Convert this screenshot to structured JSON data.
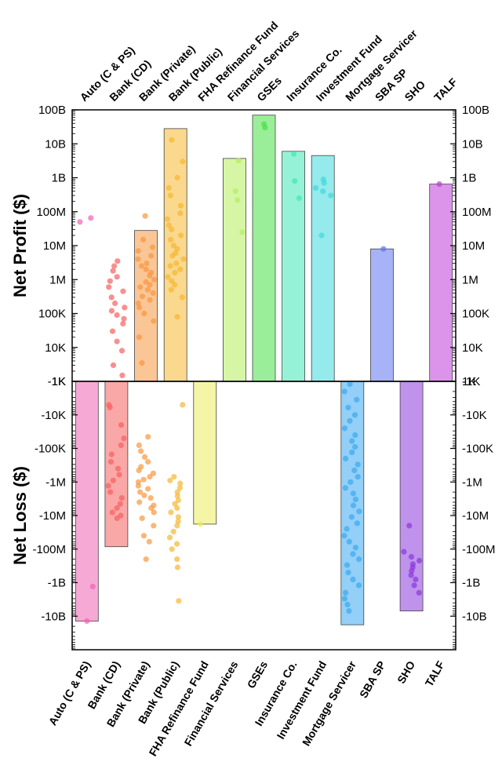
{
  "chart_data": {
    "type": "bar",
    "categories": [
      "Auto (C & PS)",
      "Bank (CD)",
      "Bank (Private)",
      "Bank (Public)",
      "FHA Refinance Fund",
      "Financial Services",
      "GSEs",
      "Insurance Co.",
      "Investment Fund",
      "Mortgage Servicer",
      "SBA SP",
      "SHO",
      "TALF"
    ],
    "colors": [
      "#f063b4",
      "#f65f5f",
      "#f8973f",
      "#f5b830",
      "#ecec60",
      "#b4ef5c",
      "#48e046",
      "#3fe8b4",
      "#3ed8dc",
      "#3aa8f0",
      "#5f73f0",
      "#8a38dc",
      "#c03ad8"
    ],
    "scale": "symlog",
    "panels": [
      {
        "ylabel": "Net Profit ($)",
        "ylim": [
          1000,
          100000000000
        ],
        "tick_values": [
          1000,
          10000,
          100000,
          1000000,
          10000000,
          100000000,
          1000000000,
          10000000000,
          100000000000
        ],
        "tick_labels": [
          "1K",
          "10K",
          "100K",
          "1M",
          "10M",
          "100M",
          "1B",
          "10B",
          "100B"
        ],
        "bar_values": [
          null,
          null,
          28000000,
          28000000000,
          null,
          3700000000,
          70000000000,
          6000000000,
          4500000000,
          null,
          8000000,
          null,
          650000000
        ],
        "points": [
          [
            65000000,
            50000000
          ],
          [
            3500000,
            2500000,
            1800000,
            1200000,
            900000,
            600000,
            450000,
            300000,
            200000,
            150000,
            120000,
            90000,
            70000,
            50000,
            30000,
            15000,
            8000,
            3000,
            1500
          ],
          [
            75000000,
            15000000,
            9000000,
            7000000,
            5000000,
            4000000,
            3000000,
            2500000,
            2000000,
            1600000,
            1300000,
            1000000,
            850000,
            700000,
            600000,
            500000,
            400000,
            320000,
            250000,
            200000,
            150000,
            100000,
            60000,
            20000,
            3500
          ],
          [
            13000000000,
            3000000000,
            1000000000,
            500000000,
            300000000,
            150000000,
            90000000,
            60000000,
            40000000,
            30000000,
            20000000,
            15000000,
            10000000,
            8000000,
            6000000,
            5000000,
            4000000,
            3000000,
            2500000,
            2000000,
            1600000,
            1200000,
            900000,
            700000,
            500000,
            300000,
            80000
          ],
          [],
          [
            3200000000,
            400000000,
            220000000,
            25000000
          ],
          [
            38000000000,
            30000000000
          ],
          [
            5000000000,
            800000000,
            250000000
          ],
          [
            900000000,
            700000000,
            500000000,
            400000000,
            300000000,
            20000000
          ],
          [],
          [
            8000000
          ],
          [],
          [
            650000000
          ]
        ]
      },
      {
        "ylabel": "Net Loss ($)",
        "ylim": [
          -1000,
          -100000000000
        ],
        "tick_values": [
          -1000,
          -10000,
          -100000,
          -1000000,
          -10000000,
          -100000000,
          -1000000000,
          -10000000000
        ],
        "tick_labels": [
          "-1K",
          "-10K",
          "-100K",
          "-1M",
          "-10M",
          "-100M",
          "-1B",
          "-10B"
        ],
        "bar_values": [
          -14000000000,
          -85000000,
          null,
          null,
          -18000000,
          null,
          null,
          null,
          null,
          -18000000000,
          null,
          -7000000000,
          null
        ],
        "points": [
          [
            -1300000000,
            -14000000000
          ],
          [
            -5000,
            -6000,
            -20000,
            -50000,
            -80000,
            -150000,
            -250000,
            -400000,
            -600000,
            -900000,
            -1300000,
            -2000000,
            -3000000,
            -4500000,
            -6000000,
            -8000000,
            -10000000,
            -12000000
          ],
          [
            -45000,
            -80000,
            -120000,
            -180000,
            -250000,
            -350000,
            -450000,
            -550000,
            -700000,
            -850000,
            -1000000,
            -1300000,
            -1600000,
            -2000000,
            -2500000,
            -3000000,
            -4000000,
            -5000000,
            -6000000,
            -8000000,
            -12000000,
            -20000000,
            -40000000,
            -60000000,
            -200000000
          ],
          [
            -5000,
            -700000,
            -900000,
            -1100000,
            -1500000,
            -2000000,
            -2600000,
            -3500000,
            -4500000,
            -6000000,
            -8000000,
            -11000000,
            -15000000,
            -20000000,
            -30000000,
            -45000000,
            -70000000,
            -100000000,
            -200000000,
            -350000000,
            -3500000000
          ],
          [
            -18000000
          ],
          [],
          [],
          [],
          [],
          [
            -1200,
            -2000,
            -3500,
            -6000,
            -10000,
            -15000,
            -25000,
            -40000,
            -60000,
            -90000,
            -130000,
            -200000,
            -300000,
            -450000,
            -700000,
            -1000000,
            -1500000,
            -2200000,
            -3300000,
            -5000000,
            -7500000,
            -11000000,
            -17000000,
            -25000000,
            -40000000,
            -60000000,
            -90000000,
            -140000000,
            -200000000,
            -300000000,
            -500000000,
            -800000000,
            -1200000000,
            -2000000000,
            -3000000000,
            -4500000000,
            -7000000000
          ],
          [],
          [
            -20000000,
            -120000000,
            -170000000,
            -220000000,
            -280000000,
            -350000000,
            -450000000,
            -600000000,
            -800000000,
            -1200000000,
            -2000000000
          ],
          []
        ]
      }
    ]
  }
}
